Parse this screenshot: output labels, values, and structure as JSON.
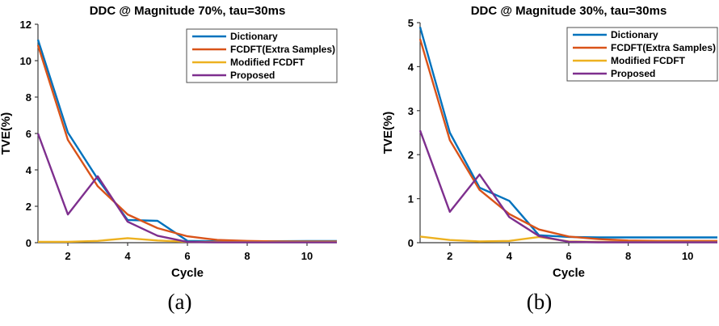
{
  "figure": {
    "description": "Two line charts comparing TVE(%) versus Cycle for four phasor estimation methods under DDC conditions"
  },
  "chart_data": [
    {
      "id": "a",
      "type": "line",
      "title": "DDC @ Magnitude 70%, tau=30ms",
      "xlabel": "Cycle",
      "ylabel": "TVE(%)",
      "caption": "(a)",
      "xlim": [
        1,
        11
      ],
      "ylim": [
        0,
        12
      ],
      "xticks": [
        2,
        4,
        6,
        8,
        10
      ],
      "yticks": [
        0,
        2,
        4,
        6,
        8,
        10,
        12
      ],
      "grid": false,
      "legend_position": "top-right",
      "x": [
        1,
        2,
        3,
        4,
        5,
        6,
        7,
        8,
        9,
        10,
        11
      ],
      "series": [
        {
          "name": "Dictionary",
          "color": "#0072BD",
          "values": [
            11.15,
            6.05,
            3.5,
            1.25,
            1.2,
            0.1,
            0.08,
            0.08,
            0.08,
            0.09,
            0.09
          ]
        },
        {
          "name": "FCDFT(Extra Samples)",
          "color": "#D95319",
          "values": [
            10.85,
            5.65,
            3.1,
            1.55,
            0.8,
            0.35,
            0.15,
            0.1,
            0.07,
            0.06,
            0.06
          ]
        },
        {
          "name": "Modified FCDFT",
          "color": "#EDB120",
          "values": [
            0.05,
            0.05,
            0.1,
            0.25,
            0.12,
            0.05,
            0.04,
            0.04,
            0.04,
            0.04,
            0.04
          ]
        },
        {
          "name": "Proposed",
          "color": "#7E2F8E",
          "values": [
            6.0,
            1.55,
            3.65,
            1.15,
            0.38,
            0.04,
            0.02,
            0.02,
            0.02,
            0.02,
            0.02
          ]
        }
      ]
    },
    {
      "id": "b",
      "type": "line",
      "title": "DDC @ Magnitude 30%, tau=30ms",
      "xlabel": "Cycle",
      "ylabel": "TVE(%)",
      "caption": "(b)",
      "xlim": [
        1,
        11
      ],
      "ylim": [
        0,
        5
      ],
      "xticks": [
        2,
        4,
        6,
        8,
        10
      ],
      "yticks": [
        0,
        1,
        2,
        3,
        4,
        5
      ],
      "grid": false,
      "legend_position": "top-right",
      "x": [
        1,
        2,
        3,
        4,
        5,
        6,
        7,
        8,
        9,
        10,
        11
      ],
      "series": [
        {
          "name": "Dictionary",
          "color": "#0072BD",
          "values": [
            4.9,
            2.5,
            1.25,
            0.95,
            0.17,
            0.13,
            0.12,
            0.12,
            0.12,
            0.12,
            0.12
          ]
        },
        {
          "name": "FCDFT(Extra Samples)",
          "color": "#D95319",
          "values": [
            4.63,
            2.33,
            1.2,
            0.65,
            0.3,
            0.14,
            0.08,
            0.05,
            0.04,
            0.04,
            0.04
          ]
        },
        {
          "name": "Modified FCDFT",
          "color": "#EDB120",
          "values": [
            0.14,
            0.06,
            0.03,
            0.04,
            0.13,
            0.03,
            0.02,
            0.02,
            0.02,
            0.02,
            0.02
          ]
        },
        {
          "name": "Proposed",
          "color": "#7E2F8E",
          "values": [
            2.55,
            0.7,
            1.55,
            0.58,
            0.15,
            0.02,
            0.01,
            0.01,
            0.01,
            0.01,
            0.01
          ]
        }
      ]
    }
  ]
}
